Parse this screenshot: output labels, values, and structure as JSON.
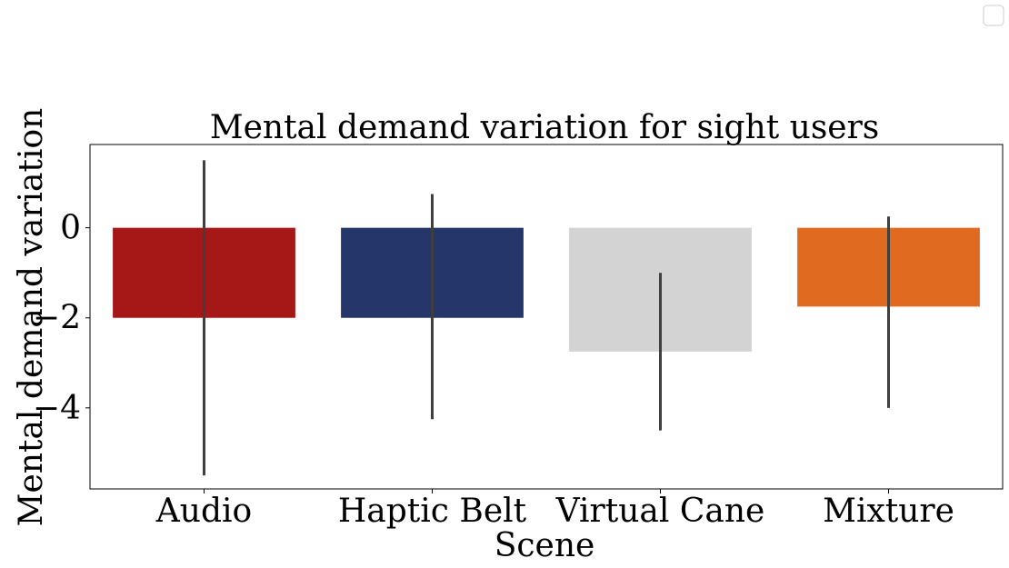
{
  "chart_data": {
    "type": "bar",
    "title": "Mental demand variation for sight users",
    "xlabel": "Scene",
    "ylabel": "Mental demand variation",
    "categories": [
      "Audio",
      "Haptic Belt",
      "Virtual Cane",
      "Mixture"
    ],
    "values": [
      -2.0,
      -2.0,
      -2.75,
      -1.75
    ],
    "error_low": [
      -5.5,
      -4.25,
      -4.5,
      -4.0
    ],
    "error_high": [
      1.5,
      0.75,
      -1.0,
      0.25
    ],
    "colors": [
      "#a61818",
      "#25376a",
      "#d3d3d3",
      "#e06b20"
    ],
    "ylim": [
      -5.8,
      1.85
    ],
    "yticks": [
      0,
      -2,
      -4
    ],
    "ytick_labels": [
      "0",
      "−2",
      "−4"
    ],
    "grid": false,
    "legend": "top-right (empty)",
    "errorbar_color": "#3f3f3f"
  }
}
